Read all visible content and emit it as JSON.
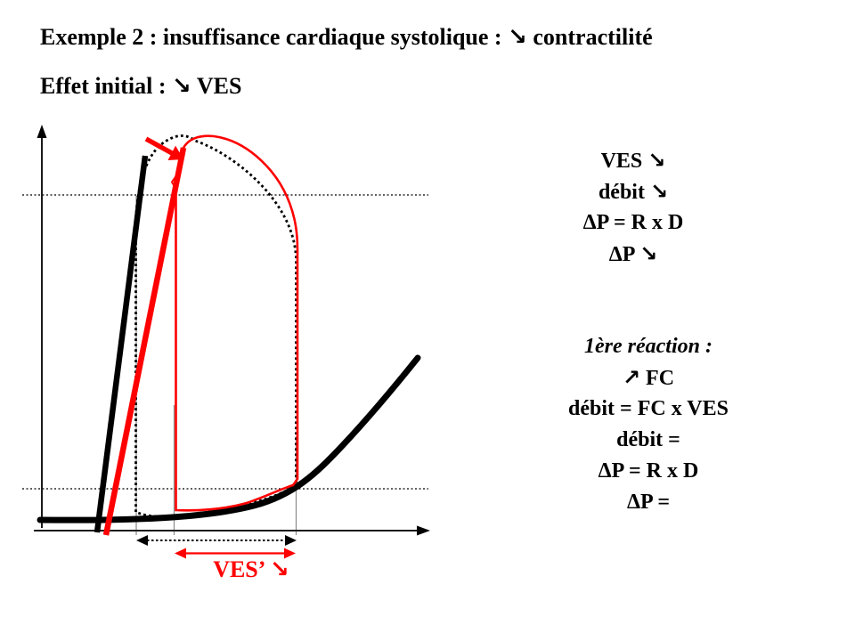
{
  "slide": {
    "title": "Exemple 2 : insuffisance cardiaque systolique : ↘ contractilité",
    "subtitle": "Effet initial : ↘ VES"
  },
  "diagram": {
    "ves_label": "VES’ ↘",
    "colors": {
      "normal_loop": "#000000",
      "failing_loop": "#ff0000"
    }
  },
  "right_panel": {
    "block1": {
      "lines": [
        "VES ↘",
        "débit ↘",
        "ΔP = R x D",
        "ΔP ↘"
      ]
    },
    "block2": {
      "heading": "1ère réaction :",
      "lines": [
        "↗ FC",
        "débit = FC x VES",
        "débit =",
        "ΔP = R x D",
        "ΔP ="
      ]
    }
  }
}
